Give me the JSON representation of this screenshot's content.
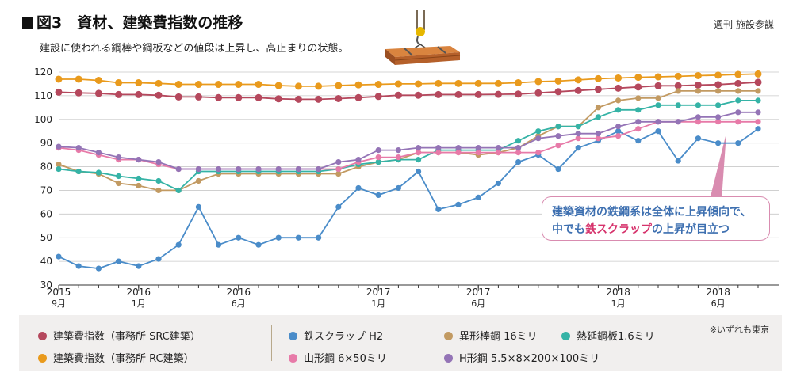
{
  "header": {
    "title": "図3　資材、建築費指数の推移",
    "source": "週刊 施設参謀",
    "subtitle": "建設に使われる鋼棒や鋼板などの値段は上昇し、高止まりの状態。"
  },
  "callout": {
    "line1": "建築資材の鉄鋼系は全体に上昇傾向で、",
    "line2_prefix": "中でも",
    "line2_highlight": "鉄スクラップ",
    "line2_suffix": "の上昇が目立つ"
  },
  "legend": {
    "note": "※いずれも東京"
  },
  "colors": {
    "src": "#b5485d",
    "rc": "#e99a1c",
    "scrap": "#4a8cc9",
    "deformed": "#c29a62",
    "hotroll": "#35b3a6",
    "angle": "#e77aa8",
    "hbeam": "#9474b6",
    "callout_border": "#d98cb0",
    "callout_text": "#3d6fb0",
    "callout_highlight": "#d6336c"
  },
  "chart_data": {
    "type": "line",
    "ylim": [
      30,
      120
    ],
    "yticks": [
      30,
      40,
      50,
      60,
      70,
      80,
      90,
      100,
      110,
      120
    ],
    "x_tick_labels": [
      {
        "index": 0,
        "year": "2015",
        "month": "9月"
      },
      {
        "index": 4,
        "year": "2016",
        "month": "1月"
      },
      {
        "index": 9,
        "year": "2016",
        "month": "6月"
      },
      {
        "index": 16,
        "year": "2017",
        "month": "1月"
      },
      {
        "index": 21,
        "year": "2017",
        "month": "6月"
      },
      {
        "index": 28,
        "year": "2018",
        "month": "1月"
      },
      {
        "index": 33,
        "year": "2018",
        "month": "6月"
      }
    ],
    "series": [
      {
        "key": "src",
        "name": "建築費指数（事務所 SRC建築）",
        "color": "#b5485d",
        "values": [
          111.5,
          111.2,
          111,
          110.5,
          110.5,
          110.2,
          109.5,
          109.5,
          109.2,
          109.2,
          109.2,
          108.7,
          108.5,
          108.5,
          108.8,
          109.2,
          109.7,
          110.2,
          110.2,
          110.5,
          110.5,
          110.5,
          110.6,
          110.7,
          111.2,
          111.7,
          112.2,
          112.7,
          113.2,
          113.7,
          114.2,
          114.2,
          114.5,
          114.7,
          115.2,
          115.7
        ]
      },
      {
        "key": "rc",
        "name": "建築費指数（事務所 RC建築）",
        "color": "#e99a1c",
        "values": [
          117,
          117,
          116.5,
          115.5,
          115.5,
          115.2,
          114.8,
          114.8,
          114.8,
          114.8,
          114.8,
          114.3,
          114,
          114,
          114.3,
          114.6,
          114.8,
          115,
          115,
          115.2,
          115.2,
          115.2,
          115.2,
          115.5,
          116,
          116.2,
          116.7,
          117.2,
          117.5,
          117.8,
          118,
          118.2,
          118.5,
          118.7,
          119,
          119.2
        ]
      },
      {
        "key": "scrap",
        "name": "鉄スクラップ H2",
        "color": "#4a8cc9",
        "values": [
          42,
          38,
          37,
          40,
          38,
          41,
          47,
          63,
          47,
          50,
          47,
          50,
          50,
          50,
          63,
          71,
          68,
          71,
          78,
          62,
          64,
          67,
          73,
          82,
          85,
          79,
          88,
          91,
          95,
          91,
          95,
          82.5,
          92,
          90,
          90,
          96
        ]
      },
      {
        "key": "deformed",
        "name": "異形棒鋼 16ミリ",
        "color": "#c29a62",
        "values": [
          81,
          78,
          77,
          73,
          72,
          70,
          70,
          74,
          77,
          77,
          77,
          77,
          77,
          77,
          77,
          80,
          82,
          83,
          86,
          86,
          86,
          85,
          86,
          88,
          93,
          97,
          97,
          105,
          108,
          109,
          109,
          112,
          112,
          112,
          112,
          112
        ]
      },
      {
        "key": "hotroll",
        "name": "熱延鋼板1.6ミリ",
        "color": "#35b3a6",
        "values": [
          79,
          78,
          77.5,
          76,
          75,
          74,
          70,
          78,
          78,
          78,
          78,
          78,
          78,
          78,
          79,
          81,
          82,
          83,
          83,
          87,
          87,
          87,
          87,
          91,
          95,
          97,
          97,
          101,
          104,
          104,
          106,
          106,
          106,
          106,
          108,
          108
        ]
      },
      {
        "key": "angle",
        "name": "山形鋼 6×50ミリ",
        "color": "#e77aa8",
        "values": [
          88,
          87,
          85,
          83,
          83,
          81,
          79,
          79,
          79,
          79,
          79,
          79,
          79,
          79,
          79,
          82,
          84,
          84,
          86,
          86,
          86,
          86,
          86,
          86,
          86,
          89,
          92,
          92,
          93,
          96,
          99,
          99,
          99,
          99,
          99,
          99
        ]
      },
      {
        "key": "hbeam",
        "name": "H形鋼 5.5×8×200×100ミリ",
        "color": "#9474b6",
        "values": [
          88.5,
          88,
          86,
          84,
          83,
          82,
          79,
          79,
          79,
          79,
          79,
          79,
          79,
          79,
          82,
          83,
          87,
          87,
          88,
          88,
          88,
          88,
          88,
          88,
          92,
          93,
          94,
          94,
          97,
          99,
          99,
          99,
          101,
          101,
          103,
          103
        ]
      }
    ]
  }
}
